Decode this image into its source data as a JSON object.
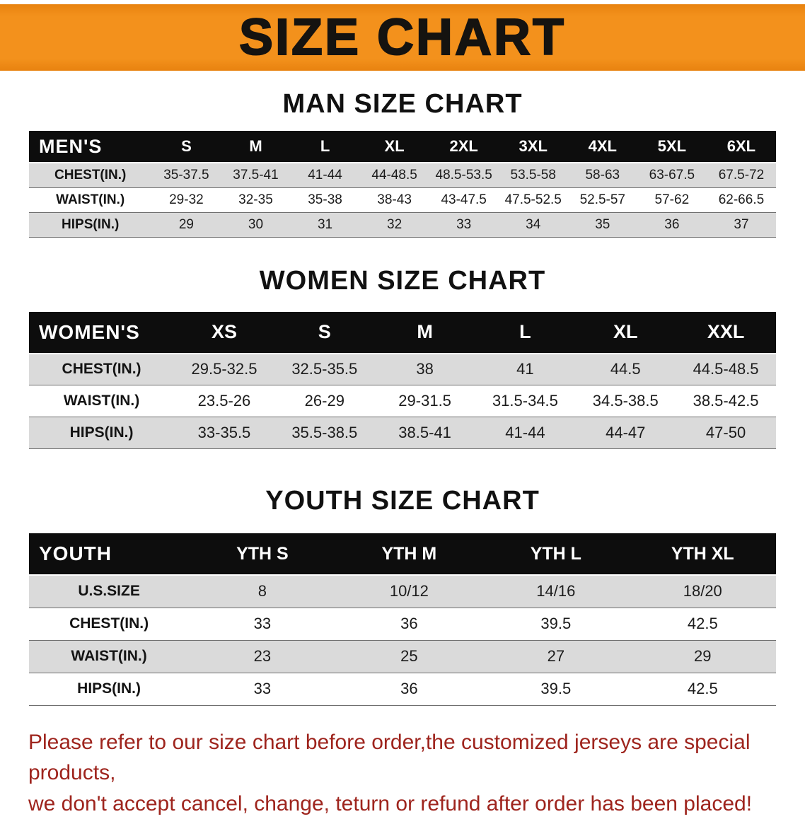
{
  "banner": {
    "title": "SIZE CHART",
    "bg_color": "#F3911C",
    "text_color": "#151310"
  },
  "chart_data": [
    {
      "type": "table",
      "title": "MAN SIZE CHART",
      "columns": [
        "MEN'S",
        "S",
        "M",
        "L",
        "XL",
        "2XL",
        "3XL",
        "4XL",
        "5XL",
        "6XL"
      ],
      "rows": [
        [
          "CHEST(IN.)",
          "35-37.5",
          "37.5-41",
          "41-44",
          "44-48.5",
          "48.5-53.5",
          "53.5-58",
          "58-63",
          "63-67.5",
          "67.5-72"
        ],
        [
          "WAIST(IN.)",
          "29-32",
          "32-35",
          "35-38",
          "38-43",
          "43-47.5",
          "47.5-52.5",
          "52.5-57",
          "57-62",
          "62-66.5"
        ],
        [
          "HIPS(IN.)",
          "29",
          "30",
          "31",
          "32",
          "33",
          "34",
          "35",
          "36",
          "37"
        ]
      ]
    },
    {
      "type": "table",
      "title": "WOMEN SIZE CHART",
      "columns": [
        "WOMEN'S",
        "XS",
        "S",
        "M",
        "L",
        "XL",
        "XXL"
      ],
      "rows": [
        [
          "CHEST(IN.)",
          "29.5-32.5",
          "32.5-35.5",
          "38",
          "41",
          "44.5",
          "44.5-48.5"
        ],
        [
          "WAIST(IN.)",
          "23.5-26",
          "26-29",
          "29-31.5",
          "31.5-34.5",
          "34.5-38.5",
          "38.5-42.5"
        ],
        [
          "HIPS(IN.)",
          "33-35.5",
          "35.5-38.5",
          "38.5-41",
          "41-44",
          "44-47",
          "47-50"
        ]
      ]
    },
    {
      "type": "table",
      "title": "YOUTH SIZE CHART",
      "columns": [
        "YOUTH",
        "YTH S",
        "YTH M",
        "YTH L",
        "YTH XL"
      ],
      "rows": [
        [
          "U.S.SIZE",
          "8",
          "10/12",
          "14/16",
          "18/20"
        ],
        [
          "CHEST(IN.)",
          "33",
          "36",
          "39.5",
          "42.5"
        ],
        [
          "WAIST(IN.)",
          "23",
          "25",
          "27",
          "29"
        ],
        [
          "HIPS(IN.)",
          "33",
          "36",
          "39.5",
          "42.5"
        ]
      ]
    }
  ],
  "colors": {
    "header_bar": "#0D0D0D",
    "shaded_row": "#DADADA",
    "notice_red": "#9E241D"
  },
  "footer": {
    "lines": [
      "Please refer to our size chart before order,the customized jerseys are special products,",
      "we don't accept cancel, change, teturn or refund after order has been placed!"
    ]
  }
}
